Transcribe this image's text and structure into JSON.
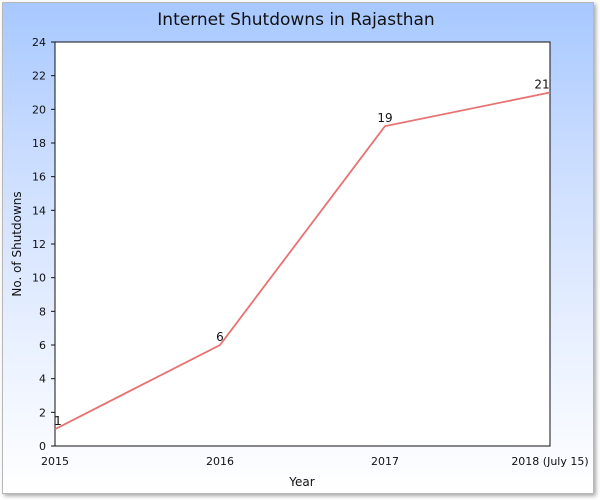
{
  "chart_data": {
    "type": "line",
    "title": "Internet Shutdowns in Rajasthan",
    "xlabel": "Year",
    "ylabel": "No. of Shutdowns",
    "categories": [
      "2015",
      "2016",
      "2017",
      "2018 (July 15)"
    ],
    "series": [
      {
        "values": [
          1,
          6,
          19,
          21
        ],
        "color": "#e87272"
      }
    ],
    "ylim": [
      0,
      24
    ],
    "yticks": [
      0,
      2,
      4,
      6,
      8,
      10,
      12,
      14,
      16,
      18,
      20,
      22,
      24
    ],
    "data_labels": [
      "1",
      "6",
      "19",
      "21"
    ],
    "grid": false,
    "legend": "none"
  }
}
